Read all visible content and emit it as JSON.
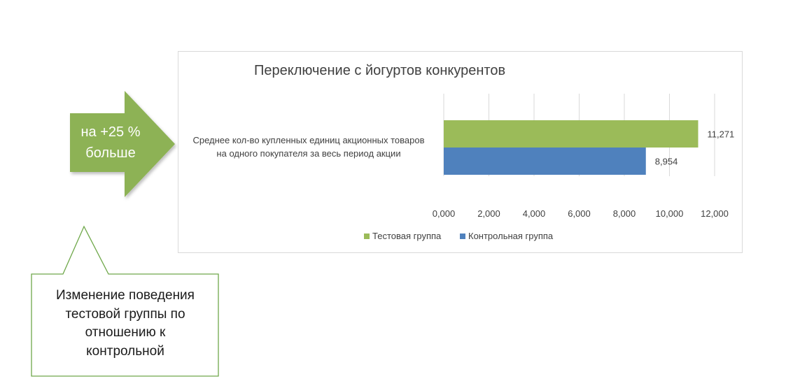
{
  "arrow": {
    "line1": "на +25 %",
    "line2": "больше",
    "color": "#8DB255"
  },
  "callout": {
    "lines": [
      "Изменение поведения",
      "тестовой группы по",
      "отношению к",
      "контрольной"
    ],
    "border_color": "#6FA84A"
  },
  "chart_data": {
    "type": "bar",
    "orientation": "horizontal",
    "title": "Переключение с йогуртов конкурентов",
    "categories": [
      "Среднее кол-во купленных единиц акционных товаров на одного покупателя за весь период акции"
    ],
    "category_lines": [
      "Среднее кол-во купленных единиц акционных товаров",
      "на одного покупателя за весь период акции"
    ],
    "series": [
      {
        "name": "Тестовая группа",
        "values": [
          11.271
        ],
        "label": "11,271",
        "color": "#9BBB59"
      },
      {
        "name": "Контрольная группа",
        "values": [
          8.954
        ],
        "label": "8,954",
        "color": "#4F81BD"
      }
    ],
    "xlim": [
      0,
      12
    ],
    "xticks": [
      0,
      2,
      4,
      6,
      8,
      10,
      12
    ],
    "xtick_labels": [
      "0,000",
      "2,000",
      "4,000",
      "6,000",
      "8,000",
      "10,000",
      "12,000"
    ],
    "grid": true,
    "legend": "bottom"
  }
}
